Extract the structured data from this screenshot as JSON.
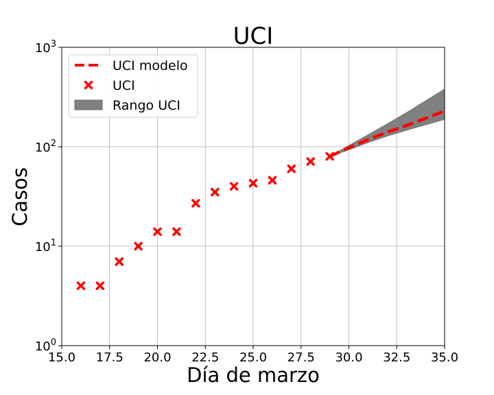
{
  "chart_data": {
    "type": "line",
    "title": "UCI",
    "xlabel": "Día de marzo",
    "ylabel": "Casos",
    "xlim": [
      15.0,
      35.0
    ],
    "ylim": [
      1,
      1000
    ],
    "yscale": "log",
    "grid": true,
    "legend_position": "top-left",
    "x_ticks": [
      "15.0",
      "17.5",
      "20.0",
      "22.5",
      "25.0",
      "27.5",
      "30.0",
      "32.5",
      "35.0"
    ],
    "x_tick_values": [
      15.0,
      17.5,
      20.0,
      22.5,
      25.0,
      27.5,
      30.0,
      32.5,
      35.0
    ],
    "y_tick_values": [
      1,
      10,
      100,
      1000
    ],
    "y_ticks": [
      {
        "base": "10",
        "exp": "0"
      },
      {
        "base": "10",
        "exp": "1"
      },
      {
        "base": "10",
        "exp": "2"
      },
      {
        "base": "10",
        "exp": "3"
      }
    ],
    "series": [
      {
        "name": "UCI modelo",
        "kind": "line",
        "style": "dashed",
        "color": "#ff0000",
        "x": [
          29,
          30,
          31,
          32,
          33,
          34,
          35
        ],
        "y": [
          80,
          98,
          118,
          140,
          163,
          193,
          228
        ]
      },
      {
        "name": "UCI",
        "kind": "scatter",
        "marker": "x",
        "color": "#ff0000",
        "x": [
          16,
          17,
          18,
          19,
          20,
          21,
          22,
          23,
          24,
          25,
          26,
          27,
          28,
          29
        ],
        "y": [
          4,
          4,
          7,
          10,
          14,
          14,
          27,
          35,
          40,
          43,
          46,
          60,
          71,
          80
        ]
      },
      {
        "name": "Rango UCI",
        "kind": "band",
        "color": "#808080",
        "x": [
          29,
          30,
          31,
          32,
          33,
          34,
          35
        ],
        "lower": [
          80,
          93,
          110,
          128,
          146,
          166,
          188
        ],
        "upper": [
          80,
          103,
          132,
          170,
          220,
          290,
          380
        ]
      }
    ]
  }
}
